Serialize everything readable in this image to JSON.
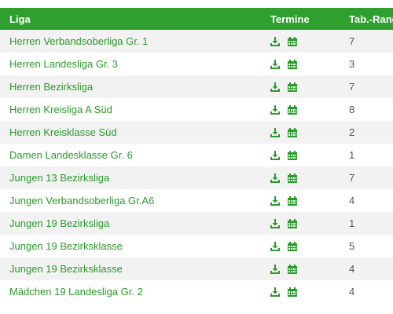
{
  "table": {
    "headers": {
      "liga": "Liga",
      "termine": "Termine",
      "rank": "Tab.-Rang"
    },
    "rows": [
      {
        "liga": "Herren Verbandsoberliga Gr. 1",
        "rank": "7"
      },
      {
        "liga": "Herren Landesliga Gr. 3",
        "rank": "3"
      },
      {
        "liga": "Herren Bezirksliga",
        "rank": "7"
      },
      {
        "liga": "Herren Kreisliga A Süd",
        "rank": "8"
      },
      {
        "liga": "Herren Kreisklasse Süd",
        "rank": "2"
      },
      {
        "liga": "Damen Landesklasse Gr. 6",
        "rank": "1"
      },
      {
        "liga": "Jungen 13 Bezirksliga",
        "rank": "7"
      },
      {
        "liga": "Jungen Verbandsoberliga Gr.A6",
        "rank": "4"
      },
      {
        "liga": "Jungen 19 Bezirksliga",
        "rank": "1"
      },
      {
        "liga": "Jungen 19 Bezirksklasse",
        "rank": "5"
      },
      {
        "liga": "Jungen 19 Bezirksklasse",
        "rank": "4"
      },
      {
        "liga": "Mädchen 19 Landesliga Gr. 2",
        "rank": "4"
      }
    ],
    "icons": {
      "download": "download-icon",
      "calendar": "calendar-icon"
    },
    "colors": {
      "header_bg": "#2f9f2f",
      "link": "#2a9a2a",
      "row_alt": "#f2f2f2"
    }
  }
}
